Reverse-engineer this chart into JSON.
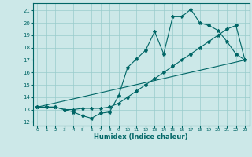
{
  "xlabel": "Humidex (Indice chaleur)",
  "bg_color": "#cce8e8",
  "line_color": "#006666",
  "grid_color": "#99cccc",
  "ylim": [
    11.7,
    21.6
  ],
  "xlim": [
    -0.5,
    23.5
  ],
  "line1_x": [
    0,
    1,
    2,
    3,
    4,
    5,
    6,
    7,
    8,
    9,
    10,
    11,
    12,
    13,
    14,
    15,
    16,
    17,
    18,
    19,
    20,
    21,
    22,
    23
  ],
  "line1_y": [
    13.2,
    13.2,
    13.2,
    13.0,
    12.8,
    12.5,
    12.3,
    12.7,
    12.8,
    14.1,
    16.4,
    17.1,
    17.8,
    19.3,
    17.5,
    20.5,
    20.5,
    21.1,
    20.0,
    19.8,
    19.4,
    18.5,
    17.5,
    17.0
  ],
  "line2_x": [
    0,
    1,
    2,
    3,
    4,
    5,
    6,
    7,
    8,
    9,
    10,
    11,
    12,
    13,
    14,
    15,
    16,
    17,
    18,
    19,
    20,
    21,
    22,
    23
  ],
  "line2_y": [
    13.2,
    13.2,
    13.2,
    13.0,
    13.0,
    13.1,
    13.1,
    13.1,
    13.2,
    13.5,
    14.0,
    14.5,
    15.0,
    15.5,
    16.0,
    16.5,
    17.0,
    17.5,
    18.0,
    18.5,
    19.0,
    19.5,
    19.8,
    17.0
  ],
  "line3_x": [
    0,
    23
  ],
  "line3_y": [
    13.2,
    17.0
  ],
  "yticks": [
    12,
    13,
    14,
    15,
    16,
    17,
    18,
    19,
    20,
    21
  ],
  "xticks": [
    0,
    1,
    2,
    3,
    4,
    5,
    6,
    7,
    8,
    9,
    10,
    11,
    12,
    13,
    14,
    15,
    16,
    17,
    18,
    19,
    20,
    21,
    22,
    23
  ]
}
